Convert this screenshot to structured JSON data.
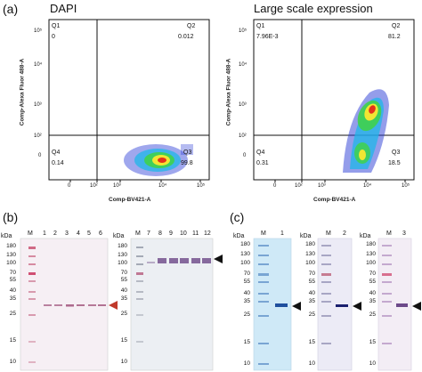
{
  "panel_a": {
    "label": "(a)",
    "plots": [
      {
        "title": "DAPI",
        "y_axis_label": "Comp-Alexa Fluor 488-A",
        "x_axis_label": "Comp-BV421-A",
        "y_ticks": [
          "10⁵",
          "10⁴",
          "10³",
          "10²",
          "0"
        ],
        "x_ticks": [
          "0",
          "10²",
          "10³",
          "10⁴",
          "10⁵"
        ],
        "quadrants": {
          "Q1": {
            "name": "Q1",
            "value": "0"
          },
          "Q2": {
            "name": "Q2",
            "value": "0.012"
          },
          "Q3": {
            "name": "Q3",
            "value": "99.8"
          },
          "Q4": {
            "name": "Q4",
            "value": "0.14"
          }
        }
      },
      {
        "title": "Large scale expression",
        "y_axis_label": "Comp-Alexa Fluor 488-A",
        "x_axis_label": "Comp-BV421-A",
        "y_ticks": [
          "10⁵",
          "10⁴",
          "10³",
          "10²",
          "0"
        ],
        "x_ticks": [
          "0",
          "10²",
          "10³",
          "10⁴",
          "10⁵"
        ],
        "quadrants": {
          "Q1": {
            "name": "Q1",
            "value": "7.96E-3"
          },
          "Q2": {
            "name": "Q2",
            "value": "81.2"
          },
          "Q3": {
            "name": "Q3",
            "value": "18.5"
          },
          "Q4": {
            "name": "Q4",
            "value": "0.31"
          }
        }
      }
    ]
  },
  "panel_b": {
    "label": "(b)",
    "gels": [
      {
        "kda_label": "kDa",
        "lanes": [
          "M",
          "1",
          "2",
          "3",
          "4",
          "5",
          "6"
        ],
        "markers": [
          "180",
          "130",
          "100",
          "70",
          "55",
          "40",
          "35",
          "25",
          "15",
          "10"
        ],
        "arrow_color": "#c0392b"
      },
      {
        "kda_label": "kDa",
        "lanes": [
          "M",
          "7",
          "8",
          "9",
          "10",
          "11",
          "12"
        ],
        "markers": [
          "180",
          "130",
          "100",
          "70",
          "55",
          "40",
          "35",
          "25",
          "15",
          "10"
        ],
        "arrow_color": "#111111"
      }
    ]
  },
  "panel_c": {
    "label": "(c)",
    "gels": [
      {
        "kda_label": "kDa",
        "lanes": [
          "M",
          "1"
        ],
        "markers": [
          "180",
          "130",
          "100",
          "70",
          "55",
          "40",
          "35",
          "25",
          "15",
          "10"
        ]
      },
      {
        "kda_label": "kDa",
        "lanes": [
          "M",
          "2"
        ],
        "markers": [
          "180",
          "130",
          "100",
          "70",
          "55",
          "40",
          "35",
          "25",
          "15",
          "10"
        ]
      },
      {
        "kda_label": "kDa",
        "lanes": [
          "M",
          "3"
        ],
        "markers": [
          "180",
          "130",
          "100",
          "70",
          "55",
          "40",
          "35",
          "25",
          "15",
          "10"
        ]
      }
    ]
  },
  "colors": {
    "gel_b_background": "#f6eff4",
    "gel_c1_background": "#cfe9f7",
    "gel_c2_background": "#ecebf6",
    "gel_c3_background": "#f3edf5",
    "density_low": "#2a3bd6",
    "density_high": "#e4321b"
  }
}
